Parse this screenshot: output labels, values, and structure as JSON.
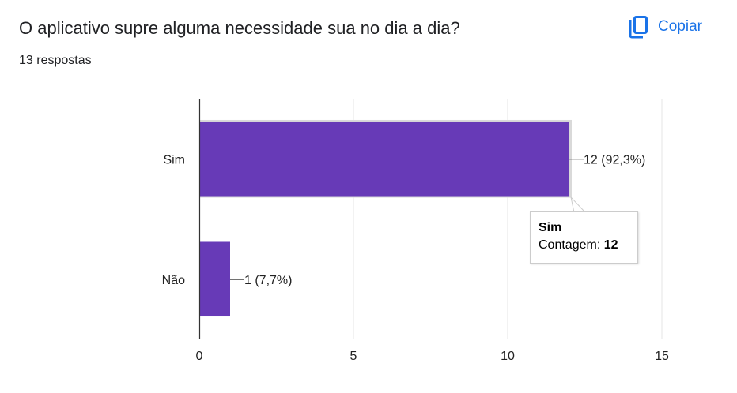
{
  "question": {
    "title": "O aplicativo supre alguma necessidade sua no dia a dia?",
    "responses": "13 respostas"
  },
  "toolbar": {
    "copy_label": "Copiar",
    "copy_icon": "copy-icon",
    "accent_color": "#1a73e8"
  },
  "chart_data": {
    "type": "bar",
    "orientation": "horizontal",
    "categories": [
      "Sim",
      "Não"
    ],
    "values": [
      12,
      1
    ],
    "data_labels": [
      "12 (92,3%)",
      "1 (7,7%)"
    ],
    "xlim": [
      0,
      15
    ],
    "x_ticks": [
      0,
      5,
      10,
      15
    ],
    "x_tick_labels": [
      "0",
      "5",
      "10",
      "15"
    ],
    "grid": true,
    "legend": "none",
    "bar_color": "#673ab7",
    "highlighted_category": "Sim"
  },
  "tooltip": {
    "title": "Sim",
    "label": "Contagem:",
    "value": "12"
  }
}
